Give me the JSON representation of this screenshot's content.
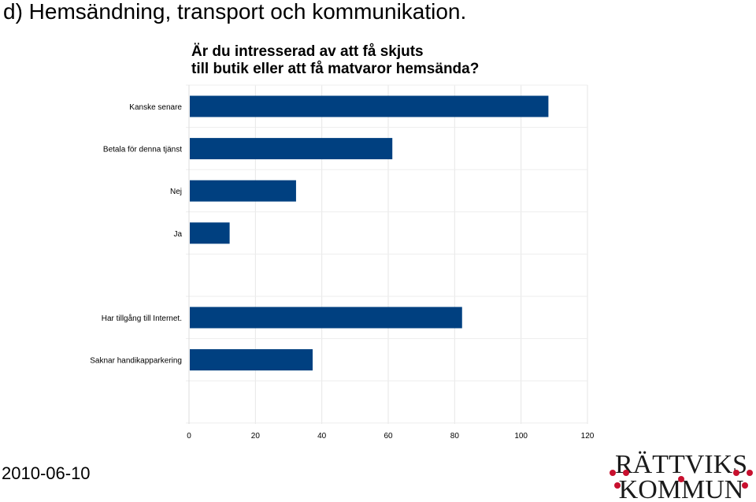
{
  "page": {
    "title": "d) Hemsändning, transport och kommunikation.",
    "date": "2010-06-10"
  },
  "logo": {
    "line1": "RÄTTVIKS",
    "line2": "KOMMUN",
    "color": "#c8102e"
  },
  "chart_data": {
    "type": "bar",
    "orientation": "horizontal",
    "title_lines": [
      "Är du intresserad av att få skjuts",
      "till butik eller att få matvaror hemsända?"
    ],
    "categories": [
      "Kanske senare",
      "Betala för denna tjänst",
      "Nej",
      "Ja",
      "",
      "Har tillgång till Internet.",
      "Saknar handikapparkering"
    ],
    "values": [
      108,
      61,
      32,
      12,
      null,
      82,
      37
    ],
    "xlim": [
      0,
      120
    ],
    "xticks": [
      0,
      20,
      40,
      60,
      80,
      100,
      120
    ],
    "grid": true,
    "bar_color": "#004080"
  }
}
